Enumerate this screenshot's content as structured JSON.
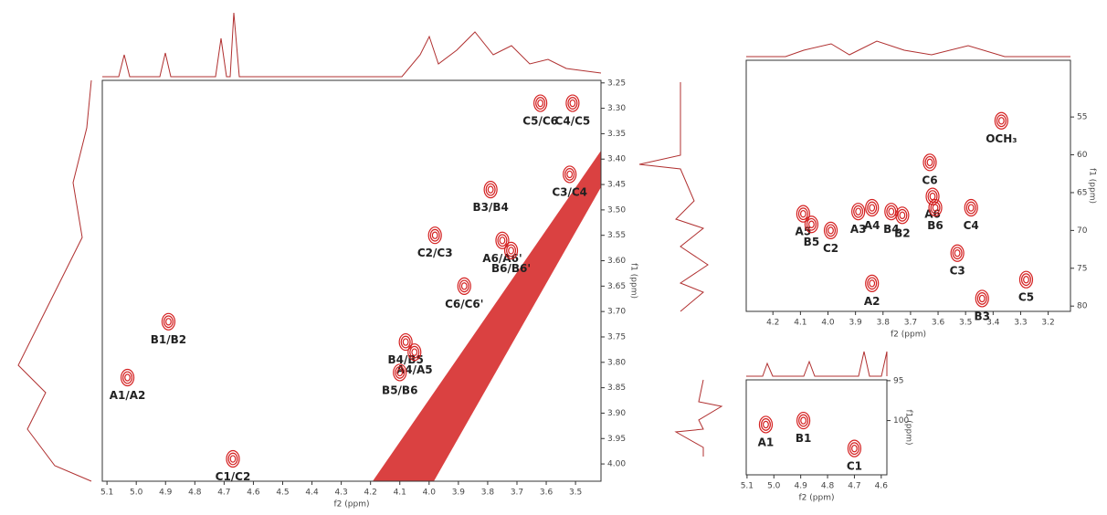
{
  "chart_data": [
    {
      "type": "contour",
      "xlabel": "f2 (ppm)",
      "ylabel": "f1 (ppm)",
      "xlim": [
        5.116,
        3.413
      ],
      "ylim": [
        4.034,
        3.245
      ],
      "xticks": [
        5.1,
        {
          "value": 5,
          "label": "5.0"
        },
        4.9,
        4.8,
        4.7,
        4.6,
        4.5,
        4.4,
        4.3,
        4.2,
        4.1,
        {
          "value": 4,
          "label": "4.0"
        },
        3.9,
        3.8,
        3.7,
        3.6,
        3.5
      ],
      "yticks": [
        3.25,
        {
          "value": 3.3,
          "label": "3.30"
        },
        3.35,
        {
          "value": 3.4,
          "label": "3.40"
        },
        3.45,
        {
          "value": 3.5,
          "label": "3.50"
        },
        3.55,
        {
          "value": 3.6,
          "label": "3.60"
        },
        3.65,
        {
          "value": 3.7,
          "label": "3.70"
        },
        3.75,
        {
          "value": 3.8,
          "label": "3.80"
        },
        3.85,
        {
          "value": 3.9,
          "label": "3.90"
        },
        3.95,
        {
          "value": 4,
          "label": "4.00"
        }
      ],
      "color": "#d42020",
      "peaks": [
        {
          "label": "A1/A2",
          "x": 5.03,
          "y": 3.83
        },
        {
          "label": "B1/B2",
          "x": 4.89,
          "y": 3.72
        },
        {
          "label": "C1/C2",
          "x": 4.67,
          "y": 3.99
        },
        {
          "label": "B4/B5",
          "x": 4.08,
          "y": 3.76
        },
        {
          "label": "A4/A5",
          "x": 4.05,
          "y": 3.78
        },
        {
          "label": "B5/B6",
          "x": 4.1,
          "y": 3.82
        },
        {
          "label": "C2/C3",
          "x": 3.98,
          "y": 3.55
        },
        {
          "label": "B3/B4",
          "x": 3.79,
          "y": 3.46
        },
        {
          "label": "A6/A6'",
          "x": 3.75,
          "y": 3.56
        },
        {
          "label": "B6/B6'",
          "x": 3.72,
          "y": 3.58
        },
        {
          "label": "C6/C6'",
          "x": 3.88,
          "y": 3.65
        },
        {
          "label": "C3/C4",
          "x": 3.52,
          "y": 3.43
        },
        {
          "label": "C5/C6",
          "x": 3.62,
          "y": 3.29
        },
        {
          "label": "C4/C5",
          "x": 3.51,
          "y": 3.29
        }
      ]
    },
    {
      "type": "contour",
      "xlabel": "f2 (ppm)",
      "ylabel": "f1 (ppm)",
      "xlim": [
        4.297,
        3.119
      ],
      "ylim": [
        80.7,
        47.5
      ],
      "xticks": [
        4.2,
        4.1,
        {
          "value": 4,
          "label": "4.0"
        },
        3.9,
        3.8,
        3.7,
        3.6,
        3.5,
        3.4,
        3.3,
        3.2
      ],
      "yticks": [
        55,
        60,
        65,
        70,
        75,
        80
      ],
      "color": "#d42020",
      "peaks": [
        {
          "label": "OCH₃",
          "x": 3.37,
          "y": 55.5
        },
        {
          "label": "C6",
          "x": 3.63,
          "y": 61
        },
        {
          "label": "A5",
          "x": 4.09,
          "y": 67.8
        },
        {
          "label": "B5",
          "x": 4.06,
          "y": 69.2
        },
        {
          "label": "A3",
          "x": 3.89,
          "y": 67.5
        },
        {
          "label": "C2",
          "x": 3.99,
          "y": 70
        },
        {
          "label": "A4",
          "x": 3.84,
          "y": 67
        },
        {
          "label": "B4",
          "x": 3.77,
          "y": 67.5
        },
        {
          "label": "B2",
          "x": 3.73,
          "y": 68
        },
        {
          "label": "A6",
          "x": 3.62,
          "y": 65.5
        },
        {
          "label": "B6",
          "x": 3.61,
          "y": 67
        },
        {
          "label": "C4",
          "x": 3.48,
          "y": 67
        },
        {
          "label": "C3",
          "x": 3.53,
          "y": 73
        },
        {
          "label": "A2",
          "x": 3.84,
          "y": 77
        },
        {
          "label": "B3",
          "x": 3.44,
          "y": 79
        },
        {
          "label": "C5",
          "x": 3.28,
          "y": 76.5
        }
      ]
    },
    {
      "type": "contour",
      "xlabel": "f2 (ppm)",
      "ylabel": "f1 (ppm)",
      "xlim": [
        5.103,
        4.579
      ],
      "ylim": [
        106.8,
        94.9
      ],
      "xticks": [
        5.1,
        {
          "value": 5,
          "label": "5.0"
        },
        4.9,
        4.8,
        4.7,
        4.6
      ],
      "yticks": [
        95,
        100
      ],
      "color": "#d42020",
      "peaks": [
        {
          "label": "A1",
          "x": 5.03,
          "y": 100.5
        },
        {
          "label": "B1",
          "x": 4.89,
          "y": 100
        },
        {
          "label": "C1",
          "x": 4.7,
          "y": 103.5
        }
      ]
    }
  ]
}
